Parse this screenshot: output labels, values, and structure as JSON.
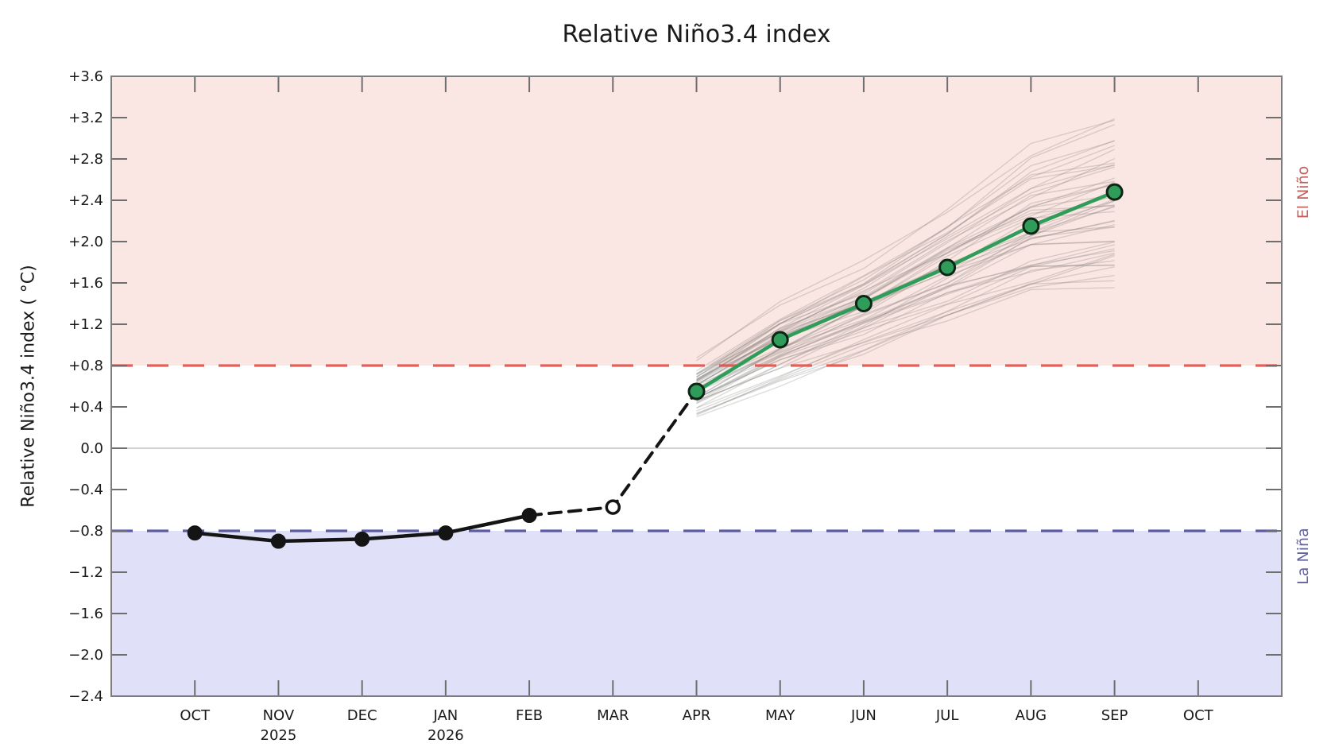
{
  "chart_data": {
    "type": "line",
    "title": "Relative Niño3.4 index",
    "ylabel": "Relative Niño3.4 index ( °C)",
    "xlabel": "",
    "ylim": [
      -2.4,
      3.6
    ],
    "grid": "zero-line-only",
    "legend": "none",
    "y_ticks": [
      3.6,
      3.2,
      2.8,
      2.4,
      2.0,
      1.6,
      1.2,
      0.8,
      0.4,
      0.0,
      -0.4,
      -0.8,
      -1.2,
      -1.6,
      -2.0,
      -2.4
    ],
    "y_tick_labels": [
      "+3.6",
      "+3.2",
      "+2.8",
      "+2.4",
      "+2.0",
      "+1.6",
      "+1.2",
      "+0.8",
      "+0.4",
      "0.0",
      "−0.4",
      "−0.8",
      "−1.2",
      "−1.6",
      "−2.0",
      "−2.4"
    ],
    "x_tick_labels": [
      "OCT",
      "NOV",
      "DEC",
      "JAN",
      "FEB",
      "MAR",
      "APR",
      "MAY",
      "JUN",
      "JUL",
      "AUG",
      "SEP",
      "OCT"
    ],
    "x_year_labels": [
      "",
      "2025",
      "",
      "2026",
      "",
      "",
      "",
      "",
      "",
      "",
      "",
      "",
      ""
    ],
    "zero_line": {
      "value": 0.0,
      "color": "#b8b8b8"
    },
    "regions": [
      {
        "name": "El Niño",
        "range": [
          0.8,
          3.6
        ],
        "fill": "#fae6e3",
        "threshold": 0.8,
        "threshold_color": "#e2514a",
        "label_color": "#c4605c"
      },
      {
        "name": "La Niña",
        "range": [
          -2.4,
          -0.8
        ],
        "fill": "#e0e0f8",
        "threshold": -0.8,
        "threshold_color": "#4c4c9c",
        "label_color": "#62629f"
      }
    ],
    "series": [
      {
        "name": "Observed relative Niño3.4 index",
        "line": "solid",
        "color": "#141414",
        "width": 4.5,
        "x_index": [
          0,
          1,
          2,
          3,
          4
        ],
        "x_labels": [
          "OCT",
          "NOV",
          "DEC",
          "JAN",
          "FEB"
        ],
        "values": [
          -0.82,
          -0.9,
          -0.88,
          -0.82,
          -0.65
        ],
        "marker_style": {
          "type": "filled",
          "fill": "#141414",
          "edge": "#141414",
          "edge_width": 1,
          "r": 9
        }
      },
      {
        "name": "Latest estimate (dashed transition)",
        "line": "dashed",
        "color": "#141414",
        "width": 4,
        "dash": [
          15,
          10
        ],
        "x_index": [
          4,
          5,
          6
        ],
        "x_labels": [
          "FEB",
          "MAR",
          "APR"
        ],
        "values": [
          -0.65,
          -0.57,
          0.55
        ],
        "marker_style": {
          "type": "open",
          "fill": "#ffffff",
          "edge": "#141414",
          "edge_width": 3.5,
          "r": 8,
          "at_x_index": 5
        }
      },
      {
        "name": "Forecast ensemble mean",
        "line": "solid",
        "color": "#2f9c59",
        "width": 4.5,
        "x_index": [
          6,
          7,
          8,
          9,
          10,
          11
        ],
        "x_labels": [
          "APR",
          "MAY",
          "JUN",
          "JUL",
          "AUG",
          "SEP"
        ],
        "values": [
          0.55,
          1.05,
          1.4,
          1.75,
          2.15,
          2.48
        ],
        "marker_style": {
          "type": "filled",
          "fill": "#2f9c59",
          "edge": "#0e2415",
          "edge_width": 3,
          "r": 9.5
        }
      }
    ],
    "ensemble": {
      "name": "Forecast ensemble members",
      "color": "rgba(112,108,104,0.24)",
      "line_width": 1.4,
      "count": 48,
      "x_index": [
        6,
        7,
        8,
        9,
        10,
        11
      ],
      "x_labels": [
        "APR",
        "MAY",
        "JUN",
        "JUL",
        "AUG",
        "SEP"
      ],
      "min": [
        0.28,
        0.6,
        0.9,
        1.2,
        1.4,
        1.5
      ],
      "max": [
        0.88,
        1.42,
        1.82,
        2.32,
        2.95,
        3.22
      ]
    }
  }
}
